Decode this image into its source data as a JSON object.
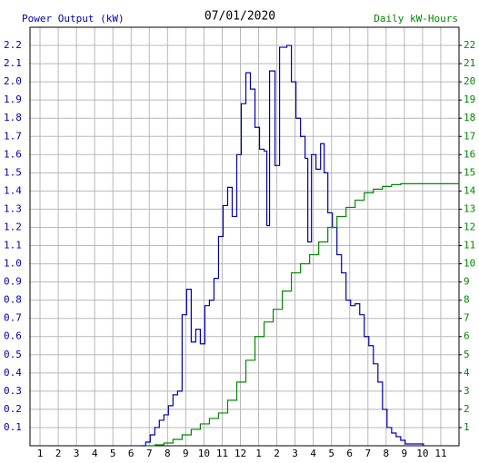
{
  "chart_data": {
    "type": "line",
    "title": "07/01/2020",
    "xlim": [
      0.45,
      24
    ],
    "xticks": [
      1,
      2,
      3,
      4,
      5,
      6,
      7,
      8,
      9,
      10,
      11,
      12,
      {
        "value": 13,
        "label": "1"
      },
      {
        "value": 14,
        "label": "2"
      },
      {
        "value": 15,
        "label": "3"
      },
      {
        "value": 16,
        "label": "4"
      },
      {
        "value": 17,
        "label": "5"
      },
      {
        "value": 18,
        "label": "6"
      },
      {
        "value": 19,
        "label": "7"
      },
      {
        "value": 20,
        "label": "8"
      },
      {
        "value": 21,
        "label": "9"
      },
      {
        "value": 22,
        "label": "10"
      },
      {
        "value": 23,
        "label": "11"
      }
    ],
    "ylim": [
      0,
      2.3
    ],
    "yticks": [
      0.1,
      0.2,
      0.3,
      0.4,
      0.5,
      0.6,
      0.7,
      0.8,
      0.9,
      {
        "value": 1,
        "label": "1.0"
      },
      1.1,
      1.2,
      1.3,
      1.4,
      1.5,
      1.6,
      1.7,
      1.8,
      1.9,
      {
        "value": 2,
        "label": "2.0"
      },
      2.1,
      2.2
    ],
    "y2lim": [
      0,
      23
    ],
    "y2ticks": [
      1,
      2,
      3,
      4,
      5,
      6,
      7,
      8,
      9,
      10,
      11,
      12,
      13,
      14,
      15,
      16,
      17,
      18,
      19,
      20,
      21,
      22
    ],
    "grid": true,
    "step": true,
    "series": [
      {
        "name": "Power Output (kW)",
        "color": "#0000b0",
        "x": [
          6.55,
          6.8,
          7.05,
          7.3,
          7.55,
          7.8,
          8.05,
          8.3,
          8.55,
          8.8,
          9.05,
          9.3,
          9.55,
          9.8,
          10.05,
          10.3,
          10.55,
          10.8,
          11.05,
          11.3,
          11.55,
          11.8,
          12.05,
          12.3,
          12.55,
          12.8,
          13.05,
          13.3,
          13.45,
          13.6,
          13.9,
          14.15,
          14.55,
          14.8,
          15.05,
          15.3,
          15.55,
          15.7,
          15.9,
          16.15,
          16.4,
          16.6,
          16.8,
          17.05,
          17.3,
          17.55,
          17.8,
          18.05,
          18.3,
          18.55,
          18.8,
          19.05,
          19.3,
          19.55,
          19.8,
          20.05,
          20.3,
          20.55,
          20.8,
          21.05,
          21.3,
          22.05
        ],
        "values": [
          0,
          0.02,
          0.06,
          0.1,
          0.14,
          0.17,
          0.22,
          0.28,
          0.3,
          0.72,
          0.86,
          0.57,
          0.64,
          0.56,
          0.77,
          0.8,
          0.92,
          1.15,
          1.32,
          1.42,
          1.26,
          1.6,
          1.88,
          2.05,
          1.96,
          1.75,
          1.63,
          1.62,
          1.21,
          2.06,
          1.54,
          2.19,
          2.2,
          2.0,
          1.8,
          1.7,
          1.58,
          1.12,
          1.6,
          1.52,
          1.66,
          1.5,
          1.28,
          1.2,
          1.05,
          0.95,
          0.8,
          0.77,
          0.78,
          0.72,
          0.6,
          0.55,
          0.45,
          0.35,
          0.2,
          0.1,
          0.07,
          0.05,
          0.03,
          0.01,
          0.01,
          0
        ]
      },
      {
        "name": "Daily kW-Hours",
        "color": "#008800",
        "axis": "y2",
        "x": [
          6.8,
          7.3,
          7.8,
          8.3,
          8.8,
          9.3,
          9.8,
          10.3,
          10.8,
          11.3,
          11.8,
          12.3,
          12.8,
          13.3,
          13.8,
          14.3,
          14.8,
          15.3,
          15.8,
          16.3,
          16.8,
          17.3,
          17.8,
          18.3,
          18.8,
          19.3,
          19.8,
          20.3,
          20.8,
          24
        ],
        "values": [
          0,
          0.05,
          0.15,
          0.35,
          0.6,
          0.9,
          1.2,
          1.5,
          1.8,
          2.5,
          3.5,
          4.7,
          6.0,
          6.8,
          7.5,
          8.5,
          9.5,
          10.0,
          10.5,
          11.2,
          12.0,
          12.6,
          13.1,
          13.5,
          13.9,
          14.1,
          14.25,
          14.35,
          14.4,
          14.4
        ]
      }
    ]
  }
}
